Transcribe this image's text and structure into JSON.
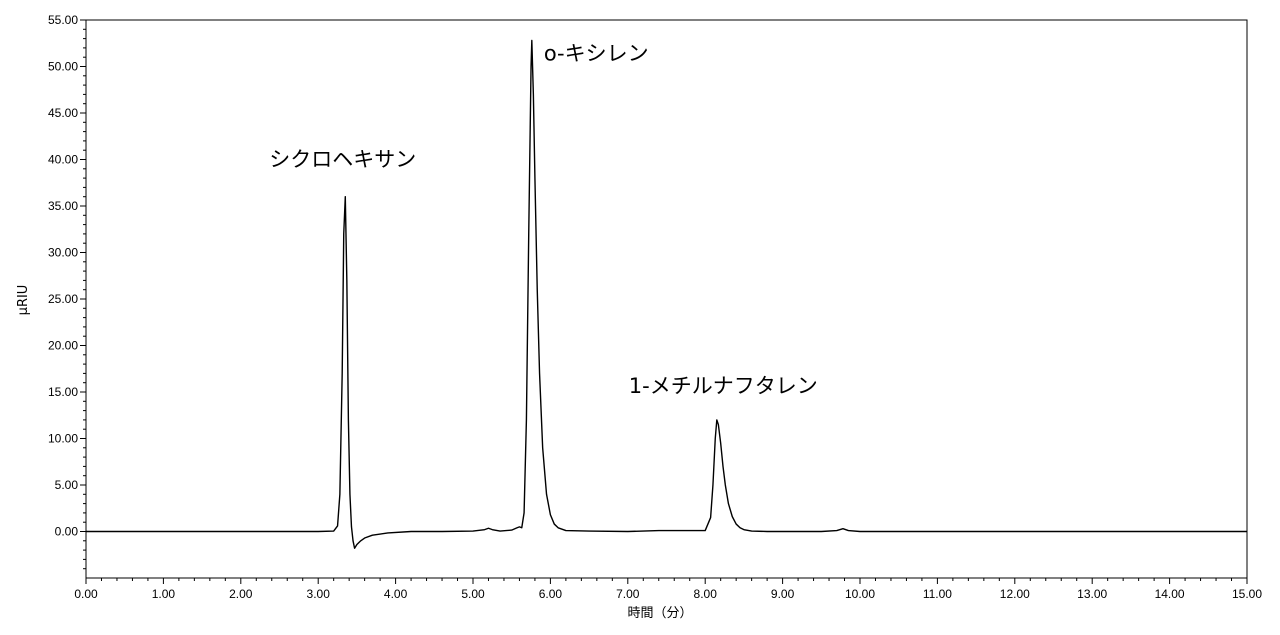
{
  "chart_data": {
    "type": "line",
    "xlabel": "時間（分）",
    "ylabel": "µRIU",
    "xlim": [
      0,
      15
    ],
    "ylim": [
      -5,
      55
    ],
    "x_ticks": [
      "0.00",
      "1.00",
      "2.00",
      "3.00",
      "4.00",
      "5.00",
      "6.00",
      "7.00",
      "8.00",
      "9.00",
      "10.00",
      "11.00",
      "12.00",
      "13.00",
      "14.00",
      "15.00"
    ],
    "y_ticks": [
      "0.00",
      "5.00",
      "10.00",
      "15.00",
      "20.00",
      "25.00",
      "30.00",
      "35.00",
      "40.00",
      "45.00",
      "50.00",
      "55.00"
    ],
    "grid": false,
    "colors": {
      "line": "#000000",
      "axes": "#000000",
      "background": "#ffffff"
    },
    "series": [
      {
        "x": [
          0.0,
          3.0,
          3.2,
          3.25,
          3.28,
          3.31,
          3.33,
          3.35,
          3.37,
          3.39,
          3.41,
          3.43,
          3.45,
          3.47,
          3.5,
          3.55,
          3.6,
          3.7,
          3.9,
          4.2,
          4.6,
          5.0,
          5.15,
          5.2,
          5.25,
          5.35,
          5.5,
          5.57,
          5.6,
          5.63,
          5.66,
          5.69,
          5.72,
          5.75,
          5.76,
          5.78,
          5.8,
          5.83,
          5.86,
          5.9,
          5.95,
          6.0,
          6.05,
          6.1,
          6.2,
          6.5,
          7.0,
          7.4,
          8.0,
          8.07,
          8.1,
          8.13,
          8.15,
          8.17,
          8.2,
          8.23,
          8.26,
          8.3,
          8.35,
          8.4,
          8.45,
          8.5,
          8.6,
          8.8,
          9.5,
          9.7,
          9.78,
          9.85,
          10.0,
          12.0,
          15.0
        ],
        "y": [
          0.0,
          0.0,
          0.05,
          0.6,
          4.0,
          17.0,
          32.0,
          36.0,
          27.0,
          12.0,
          4.0,
          0.5,
          -1.0,
          -1.8,
          -1.4,
          -1.0,
          -0.7,
          -0.4,
          -0.15,
          0.0,
          0.0,
          0.05,
          0.2,
          0.35,
          0.2,
          0.05,
          0.15,
          0.4,
          0.5,
          0.4,
          2.0,
          12.0,
          32.0,
          50.0,
          52.8,
          47.0,
          38.0,
          26.0,
          17.0,
          9.0,
          4.0,
          1.8,
          0.8,
          0.4,
          0.1,
          0.05,
          0.0,
          0.1,
          0.1,
          1.5,
          5.0,
          10.0,
          12.0,
          11.5,
          9.5,
          7.0,
          5.0,
          3.0,
          1.6,
          0.8,
          0.4,
          0.2,
          0.05,
          0.0,
          0.0,
          0.1,
          0.3,
          0.1,
          0.0,
          0.0,
          0.0
        ]
      }
    ],
    "annotations": [
      {
        "text": "シクロヘキサン",
        "x": 3.35,
        "y": 36.0
      },
      {
        "text": "o-キシレン",
        "x": 5.76,
        "y": 52.8
      },
      {
        "text": "1-メチルナフタレン",
        "x": 8.15,
        "y": 12.0
      }
    ]
  }
}
